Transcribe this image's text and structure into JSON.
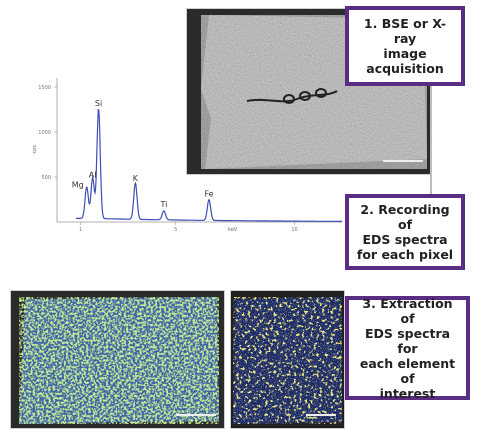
{
  "steps": [
    {
      "lines": [
        "1. BSE or X-ray",
        "image",
        "acquisition"
      ]
    },
    {
      "lines": [
        "2. Recording of",
        "EDS spectra",
        "for each pixel"
      ]
    },
    {
      "lines": [
        "3. Extraction of",
        "EDS spectra for",
        "each element of",
        "interest"
      ]
    }
  ],
  "colors": {
    "border": "#5b2c83",
    "spectrum": "#3d4fb2",
    "map_green": "#8fd04a",
    "map_blue": "#3d63a8",
    "map_yellow": "#e8d83a",
    "map_navy": "#1a2860"
  },
  "chart_data": {
    "type": "line",
    "title": "",
    "xlabel": "keV",
    "ylabel": "cps",
    "xlim": [
      0,
      12
    ],
    "ylim": [
      0,
      1600
    ],
    "x_ticks": [
      "1",
      "5",
      "10"
    ],
    "y_ticks": [
      "500",
      "1000",
      "1500"
    ],
    "peaks": [
      {
        "label": "Mg",
        "x": 1.25,
        "y": 350
      },
      {
        "label": "Al",
        "x": 1.5,
        "y": 450
      },
      {
        "label": "Si",
        "x": 1.75,
        "y": 1220
      },
      {
        "label": "K",
        "x": 3.3,
        "y": 400
      },
      {
        "label": "Ti",
        "x": 4.5,
        "y": 100
      },
      {
        "label": "Fe",
        "x": 6.4,
        "y": 230
      }
    ],
    "background": 40
  }
}
